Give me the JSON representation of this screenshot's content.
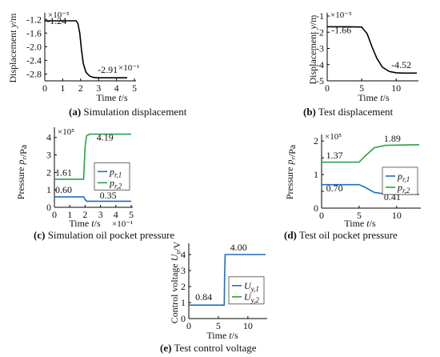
{
  "colors": {
    "sim": "#000000",
    "blue": "#1f6fc1",
    "green": "#2aa24a",
    "axis": "#000000"
  },
  "panels": [
    {
      "letter": "(a)",
      "title": " Simulation displacement"
    },
    {
      "letter": "(b)",
      "title": " Test displacement"
    },
    {
      "letter": "(c)",
      "title": " Simulation oil pocket pressure"
    },
    {
      "letter": "(d)",
      "title": " Test oil pocket pressure"
    },
    {
      "letter": "(e)",
      "title": " Test control voltage"
    }
  ],
  "chart_data": [
    {
      "id": "a",
      "type": "line",
      "ylabel": "Displacement y/m",
      "xlabel": "Time t/s",
      "y_multiplier": "×10⁻⁵",
      "x_multiplier": "×10⁻¹",
      "xlim": [
        0,
        5
      ],
      "ylim": [
        -3.0,
        -1.1
      ],
      "xticks": [
        0,
        1,
        2,
        3,
        4,
        5
      ],
      "yticks": [
        -1.2,
        -1.6,
        -2.0,
        -2.4,
        -2.8
      ],
      "ytick_labels": [
        "-1.2",
        "-1.6",
        "-2.0",
        "-2.4",
        "-2.8"
      ],
      "series": [
        {
          "color": "#000000",
          "x": [
            0,
            1.75,
            1.85,
            1.95,
            2.05,
            2.15,
            2.3,
            2.5,
            2.7,
            3.0,
            3.5,
            4.0,
            4.6
          ],
          "y": [
            -1.24,
            -1.24,
            -1.32,
            -1.6,
            -2.1,
            -2.5,
            -2.75,
            -2.86,
            -2.9,
            -2.91,
            -2.91,
            -2.91,
            -2.91
          ]
        }
      ],
      "annotations": [
        {
          "text": "-1.24",
          "x": 0.1,
          "y": -1.33
        },
        {
          "text": "-2.91",
          "x": 2.95,
          "y": -2.77
        }
      ]
    },
    {
      "id": "b",
      "type": "line",
      "ylabel": "Displacement y/m",
      "xlabel": "Time t/s",
      "y_multiplier": "×10⁻⁵",
      "xlim": [
        0,
        13
      ],
      "ylim": [
        -5.0,
        -1.0
      ],
      "xticks": [
        0,
        5,
        10
      ],
      "yticks": [
        -1,
        -2,
        -3,
        -4,
        -5
      ],
      "ytick_labels": [
        "-1",
        "-2",
        "-3",
        "-4",
        "-5"
      ],
      "series": [
        {
          "color": "#000000",
          "x": [
            0,
            3,
            5,
            5.8,
            6.5,
            7.2,
            8.0,
            9.0,
            10.0,
            11.0,
            12.0,
            13.0
          ],
          "y": [
            -1.66,
            -1.66,
            -1.68,
            -2.1,
            -2.9,
            -3.6,
            -4.15,
            -4.42,
            -4.5,
            -4.52,
            -4.52,
            -4.52
          ]
        }
      ],
      "annotations": [
        {
          "text": "-1.66",
          "x": 0.6,
          "y": -2.05
        },
        {
          "text": "-4.52",
          "x": 9.3,
          "y": -4.2
        }
      ]
    },
    {
      "id": "c",
      "type": "line",
      "ylabel": "Pressure pᵣ/Pa",
      "xlabel": "Time t/s",
      "y_multiplier": "×10⁵",
      "x_multiplier": "×10⁻¹",
      "xlim": [
        0,
        5
      ],
      "ylim": [
        0,
        4.4
      ],
      "xticks": [
        0,
        1,
        2,
        3,
        4,
        5
      ],
      "yticks": [
        0,
        1,
        2,
        3,
        4
      ],
      "ytick_labels": [
        "0",
        "1",
        "2",
        "3",
        "4"
      ],
      "series": [
        {
          "name": "pr,1",
          "color": "#1f6fc1",
          "x": [
            0,
            1.9,
            2.0,
            2.1,
            5.0
          ],
          "y": [
            0.6,
            0.6,
            0.45,
            0.35,
            0.35
          ]
        },
        {
          "name": "pr,2",
          "color": "#2aa24a",
          "x": [
            0,
            1.9,
            2.0,
            2.1,
            2.3,
            5.0
          ],
          "y": [
            1.61,
            1.61,
            3.5,
            4.1,
            4.19,
            4.19
          ]
        }
      ],
      "legend_position": "middle-right",
      "annotations": [
        {
          "text": "4.19",
          "x": 2.75,
          "y": 3.82
        },
        {
          "text": "1.61",
          "x": 0.05,
          "y": 1.82
        },
        {
          "text": "0.60",
          "x": 0.05,
          "y": 0.82
        },
        {
          "text": "0.35",
          "x": 2.95,
          "y": 0.5
        }
      ]
    },
    {
      "id": "d",
      "type": "line",
      "ylabel": "Pressure pᵣ/Pa",
      "xlabel": "Time t/s",
      "y_multiplier": "×10⁵",
      "xlim": [
        0,
        13
      ],
      "ylim": [
        0,
        2.1
      ],
      "xticks": [
        0,
        5,
        10
      ],
      "yticks": [
        0,
        0.5,
        1,
        1.5,
        2
      ],
      "ytick_labels": [
        "0",
        "",
        "1",
        "",
        "2"
      ],
      "series": [
        {
          "name": "pr,1",
          "color": "#1f6fc1",
          "x": [
            0,
            5.0,
            5.8,
            7.0,
            8.5,
            13.0
          ],
          "y": [
            0.7,
            0.7,
            0.62,
            0.47,
            0.42,
            0.41
          ]
        },
        {
          "name": "pr,2",
          "color": "#2aa24a",
          "x": [
            0,
            5.0,
            5.8,
            7.0,
            8.5,
            13.0
          ],
          "y": [
            1.37,
            1.37,
            1.55,
            1.8,
            1.87,
            1.89
          ]
        }
      ],
      "legend_position": "middle-right",
      "annotations": [
        {
          "text": "1.89",
          "x": 8.3,
          "y": 1.98
        },
        {
          "text": "1.37",
          "x": 0.6,
          "y": 1.48
        },
        {
          "text": "0.70",
          "x": 0.6,
          "y": 0.5
        },
        {
          "text": "0.41",
          "x": 8.3,
          "y": 0.24
        }
      ]
    },
    {
      "id": "e",
      "type": "line",
      "ylabel": "Control voltage Uᵧ/V",
      "xlabel": "Time t/s",
      "xlim": [
        0,
        13
      ],
      "ylim": [
        0,
        4.5
      ],
      "xticks": [
        0,
        5,
        10
      ],
      "yticks": [
        0,
        1,
        2,
        3,
        4
      ],
      "ytick_labels": [
        "0",
        "1",
        "2",
        "3",
        "4"
      ],
      "series": [
        {
          "name": "Uy,1",
          "color": "#1f6fc1",
          "x": [
            0,
            6.0,
            6.05,
            6.15,
            13.0
          ],
          "y": [
            0.84,
            0.84,
            2.5,
            4.0,
            4.0
          ]
        },
        {
          "name": "Uy,2",
          "color": "#2aa24a",
          "x": [],
          "y": []
        }
      ],
      "legend_position": "middle-right",
      "annotations": [
        {
          "text": "4.00",
          "x": 7.0,
          "y": 4.25
        },
        {
          "text": "0.84",
          "x": 1.1,
          "y": 1.15
        }
      ]
    }
  ]
}
